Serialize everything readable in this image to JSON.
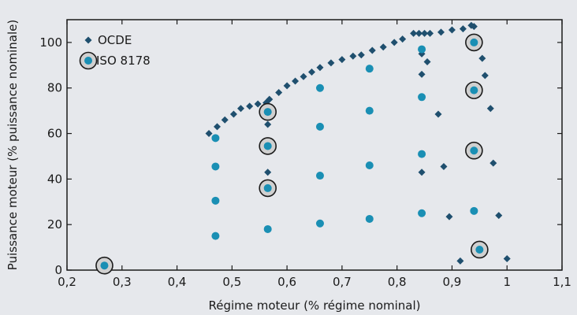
{
  "chart_data": {
    "type": "scatter",
    "xlabel": "Régime moteur (% régime nominal)",
    "ylabel": "Puissance moteur (% puissance nominale)",
    "xlim": [
      0.2,
      1.1
    ],
    "ylim": [
      0,
      110
    ],
    "xticks": [
      0.2,
      0.3,
      0.4,
      0.5,
      0.6,
      0.7,
      0.8,
      0.9,
      1.0,
      1.1
    ],
    "xtick_labels": [
      "0,2",
      "0,3",
      "0,4",
      "0,5",
      "0,6",
      "0,7",
      "0,8",
      "0,9",
      "1",
      "1,1"
    ],
    "yticks": [
      0,
      20,
      40,
      60,
      80,
      100
    ],
    "ytick_labels": [
      "0",
      "20",
      "40",
      "60",
      "80",
      "100"
    ],
    "grid": false,
    "legend_position": "top-left",
    "colors": {
      "background": "#e6e8ec",
      "ocde": "#1f4f6e",
      "iso": "#1a8fb4",
      "iso_ring_fill": "#d0d0d0",
      "iso_ring_stroke": "#1a1a1a"
    },
    "series": [
      {
        "name": "OCDE",
        "marker": "diamond",
        "points": [
          [
            0.458,
            60
          ],
          [
            0.473,
            63
          ],
          [
            0.487,
            66
          ],
          [
            0.503,
            68.5
          ],
          [
            0.516,
            71
          ],
          [
            0.532,
            72
          ],
          [
            0.547,
            73
          ],
          [
            0.562,
            73.5
          ],
          [
            0.568,
            75
          ],
          [
            0.585,
            78
          ],
          [
            0.6,
            81
          ],
          [
            0.615,
            83
          ],
          [
            0.63,
            85
          ],
          [
            0.645,
            87
          ],
          [
            0.66,
            89
          ],
          [
            0.68,
            91
          ],
          [
            0.7,
            92.5
          ],
          [
            0.72,
            94
          ],
          [
            0.735,
            94.5
          ],
          [
            0.755,
            96.5
          ],
          [
            0.775,
            98
          ],
          [
            0.795,
            100
          ],
          [
            0.81,
            101.5
          ],
          [
            0.83,
            104
          ],
          [
            0.84,
            104
          ],
          [
            0.85,
            104
          ],
          [
            0.86,
            104
          ],
          [
            0.88,
            104.5
          ],
          [
            0.9,
            105.5
          ],
          [
            0.92,
            106
          ],
          [
            0.935,
            107.5
          ],
          [
            0.94,
            107
          ],
          [
            0.845,
            95
          ],
          [
            0.855,
            91.5
          ],
          [
            0.845,
            86
          ],
          [
            0.955,
            93
          ],
          [
            0.96,
            85.5
          ],
          [
            0.97,
            71
          ],
          [
            0.565,
            64
          ],
          [
            0.875,
            68.5
          ],
          [
            0.565,
            43
          ],
          [
            0.845,
            43
          ],
          [
            0.885,
            45.5
          ],
          [
            0.975,
            47
          ],
          [
            0.895,
            23.5
          ],
          [
            0.985,
            24
          ],
          [
            0.915,
            4
          ],
          [
            1.0,
            5
          ]
        ]
      },
      {
        "name": "ISO 8178",
        "marker": "circle",
        "points": [
          [
            0.47,
            58
          ],
          [
            0.47,
            45.5
          ],
          [
            0.47,
            30.5
          ],
          [
            0.47,
            15
          ],
          [
            0.565,
            18
          ],
          [
            0.66,
            20.5
          ],
          [
            0.75,
            22.5
          ],
          [
            0.845,
            25
          ],
          [
            0.66,
            41.5
          ],
          [
            0.75,
            46
          ],
          [
            0.845,
            51
          ],
          [
            0.66,
            63
          ],
          [
            0.75,
            70
          ],
          [
            0.845,
            76
          ],
          [
            0.66,
            80
          ],
          [
            0.75,
            88.5
          ],
          [
            0.845,
            97
          ],
          [
            0.94,
            26
          ]
        ]
      },
      {
        "name": "ISO 8178 (circled)",
        "marker": "circle-ring",
        "points": [
          [
            0.268,
            2
          ],
          [
            0.565,
            36
          ],
          [
            0.565,
            54.5
          ],
          [
            0.565,
            69.5
          ],
          [
            0.94,
            100
          ],
          [
            0.94,
            79
          ],
          [
            0.94,
            52.5
          ],
          [
            0.95,
            9
          ]
        ]
      }
    ],
    "legend": [
      {
        "label": "OCDE",
        "marker": "diamond"
      },
      {
        "label": "ISO 8178",
        "marker": "circle-ring"
      }
    ]
  }
}
